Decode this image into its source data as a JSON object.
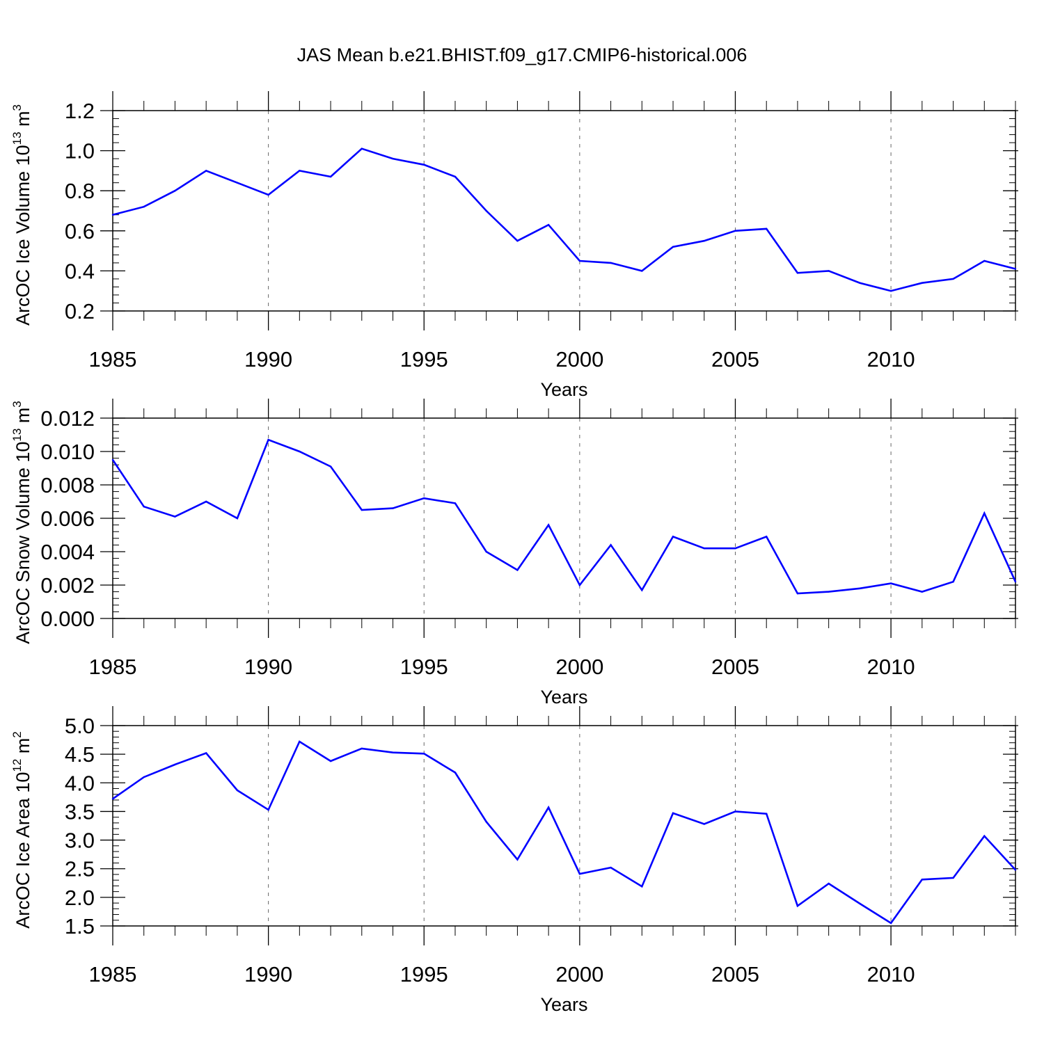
{
  "title": "JAS Mean b.e21.BHIST.f09_g17.CMIP6-historical.006",
  "chart_data": [
    {
      "type": "line",
      "title": "JAS Mean b.e21.BHIST.f09_g17.CMIP6-historical.006",
      "xlabel": "Years",
      "ylabel_main": "ArcOC Ice Volume 10",
      "ylabel_exp": "13",
      "ylabel_unit": " m",
      "ylabel_unit_exp": "3",
      "xlim": [
        1985,
        2014
      ],
      "ylim": [
        0.2,
        1.2
      ],
      "yticks": [
        0.2,
        0.4,
        0.6,
        0.8,
        1.0,
        1.2
      ],
      "ytick_labels": [
        "0.2",
        "0.4",
        "0.6",
        "0.8",
        "1.0",
        "1.2"
      ],
      "xticks": [
        1985,
        1990,
        1995,
        2000,
        2005,
        2010
      ],
      "xtick_labels": [
        "1985",
        "1990",
        "1995",
        "2000",
        "2005",
        "2010"
      ],
      "grid": "dashed vertical lines at major x ticks",
      "line_color": "#0000ff",
      "x": [
        1985,
        1986,
        1987,
        1988,
        1989,
        1990,
        1991,
        1992,
        1993,
        1994,
        1995,
        1996,
        1997,
        1998,
        1999,
        2000,
        2001,
        2002,
        2003,
        2004,
        2005,
        2006,
        2007,
        2008,
        2009,
        2010,
        2011,
        2012,
        2013,
        2014
      ],
      "values": [
        0.68,
        0.72,
        0.8,
        0.9,
        0.84,
        0.78,
        0.9,
        0.87,
        1.01,
        0.96,
        0.93,
        0.87,
        0.7,
        0.55,
        0.63,
        0.45,
        0.44,
        0.4,
        0.52,
        0.55,
        0.6,
        0.61,
        0.39,
        0.4,
        0.34,
        0.3,
        0.34,
        0.36,
        0.45,
        0.41
      ]
    },
    {
      "type": "line",
      "xlabel": "Years",
      "ylabel_main": "ArcOC Snow Volume 10",
      "ylabel_exp": "13",
      "ylabel_unit": " m",
      "ylabel_unit_exp": "3",
      "xlim": [
        1985,
        2014
      ],
      "ylim": [
        0.0,
        0.012
      ],
      "yticks": [
        0.0,
        0.002,
        0.004,
        0.006,
        0.008,
        0.01,
        0.012
      ],
      "ytick_labels": [
        "0.000",
        "0.002",
        "0.004",
        "0.006",
        "0.008",
        "0.010",
        "0.012"
      ],
      "xticks": [
        1985,
        1990,
        1995,
        2000,
        2005,
        2010
      ],
      "xtick_labels": [
        "1985",
        "1990",
        "1995",
        "2000",
        "2005",
        "2010"
      ],
      "grid": "dashed vertical lines at major x ticks",
      "line_color": "#0000ff",
      "x": [
        1985,
        1986,
        1987,
        1988,
        1989,
        1990,
        1991,
        1992,
        1993,
        1994,
        1995,
        1996,
        1997,
        1998,
        1999,
        2000,
        2001,
        2002,
        2003,
        2004,
        2005,
        2006,
        2007,
        2008,
        2009,
        2010,
        2011,
        2012,
        2013,
        2014
      ],
      "values": [
        0.0095,
        0.0067,
        0.0061,
        0.007,
        0.006,
        0.0107,
        0.01,
        0.0091,
        0.0065,
        0.0066,
        0.0072,
        0.0069,
        0.004,
        0.0029,
        0.0056,
        0.002,
        0.0044,
        0.0017,
        0.0049,
        0.0042,
        0.0042,
        0.0049,
        0.0015,
        0.0016,
        0.0018,
        0.0021,
        0.0016,
        0.0022,
        0.0063,
        0.0022
      ]
    },
    {
      "type": "line",
      "xlabel": "Years",
      "ylabel_main": "ArcOC Ice Area 10",
      "ylabel_exp": "12",
      "ylabel_unit": " m",
      "ylabel_unit_exp": "2",
      "xlim": [
        1985,
        2014
      ],
      "ylim": [
        1.5,
        5.0
      ],
      "yticks": [
        1.5,
        2.0,
        2.5,
        3.0,
        3.5,
        4.0,
        4.5,
        5.0
      ],
      "ytick_labels": [
        "1.5",
        "2.0",
        "2.5",
        "3.0",
        "3.5",
        "4.0",
        "4.5",
        "5.0"
      ],
      "xticks": [
        1985,
        1990,
        1995,
        2000,
        2005,
        2010
      ],
      "xtick_labels": [
        "1985",
        "1990",
        "1995",
        "2000",
        "2005",
        "2010"
      ],
      "grid": "dashed vertical lines at major x ticks",
      "line_color": "#0000ff",
      "x": [
        1985,
        1986,
        1987,
        1988,
        1989,
        1990,
        1991,
        1992,
        1993,
        1994,
        1995,
        1996,
        1997,
        1998,
        1999,
        2000,
        2001,
        2002,
        2003,
        2004,
        2005,
        2006,
        2007,
        2008,
        2009,
        2010,
        2011,
        2012,
        2013,
        2014
      ],
      "values": [
        3.72,
        4.1,
        4.32,
        4.52,
        3.87,
        3.53,
        4.72,
        4.38,
        4.6,
        4.53,
        4.51,
        4.18,
        3.32,
        2.66,
        3.57,
        2.41,
        2.52,
        2.19,
        3.47,
        3.28,
        3.5,
        3.46,
        1.85,
        2.24,
        1.89,
        1.55,
        2.31,
        2.34,
        3.07,
        2.48
      ]
    }
  ]
}
